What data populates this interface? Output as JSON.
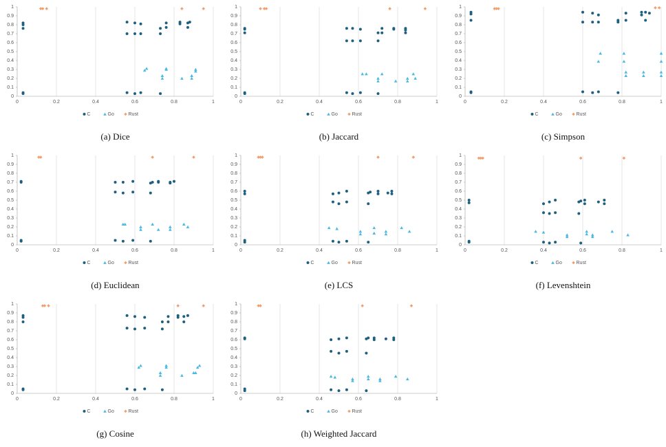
{
  "chart_data": [
    {
      "type": "scatter",
      "title": "(a) Dice",
      "xlim": [
        0,
        1
      ],
      "ylim": [
        0,
        1
      ],
      "xticks": [
        0,
        0.2,
        0.4,
        0.6,
        0.8,
        1
      ],
      "yticks": [
        0,
        0.1,
        0.2,
        0.3,
        0.4,
        0.5,
        0.6,
        0.7,
        0.8,
        0.9,
        1
      ],
      "grid": true,
      "series": [
        {
          "name": "C",
          "color": "#1f5f7f",
          "marker": "circle",
          "x": [
            0.03,
            0.03,
            0.03,
            0.03,
            0.03,
            0.56,
            0.56,
            0.6,
            0.6,
            0.63,
            0.63,
            0.73,
            0.73,
            0.76,
            0.76,
            0.83,
            0.83,
            0.87,
            0.87,
            0.88,
            0.56,
            0.6,
            0.63,
            0.73
          ],
          "y": [
            0.82,
            0.8,
            0.76,
            0.04,
            0.03,
            0.83,
            0.7,
            0.82,
            0.7,
            0.81,
            0.7,
            0.76,
            0.7,
            0.82,
            0.77,
            0.83,
            0.81,
            0.82,
            0.77,
            0.83,
            0.04,
            0.03,
            0.04,
            0.03
          ]
        },
        {
          "name": "Go",
          "color": "#4cb8e0",
          "marker": "triangle",
          "x": [
            0.65,
            0.66,
            0.74,
            0.74,
            0.76,
            0.76,
            0.84,
            0.89,
            0.89,
            0.91,
            0.91
          ],
          "y": [
            0.29,
            0.31,
            0.2,
            0.23,
            0.3,
            0.31,
            0.2,
            0.2,
            0.23,
            0.3,
            0.28
          ]
        },
        {
          "name": "Rust",
          "color": "#f0a070",
          "marker": "diamond",
          "x": [
            0.12,
            0.13,
            0.15,
            0.84,
            0.95
          ],
          "y": [
            0.98,
            0.98,
            0.98,
            0.98,
            0.98
          ]
        }
      ]
    },
    {
      "type": "scatter",
      "title": "(b) Jaccard",
      "xlim": [
        0,
        1
      ],
      "ylim": [
        0,
        1
      ],
      "xticks": [
        0,
        0.2,
        0.4,
        0.6,
        0.8,
        1
      ],
      "yticks": [
        0,
        0.1,
        0.2,
        0.3,
        0.4,
        0.5,
        0.6,
        0.7,
        0.8,
        0.9,
        1
      ],
      "grid": true,
      "series": [
        {
          "name": "C",
          "color": "#1f5f7f",
          "marker": "circle",
          "x": [
            0.02,
            0.02,
            0.02,
            0.02,
            0.02,
            0.54,
            0.54,
            0.57,
            0.57,
            0.61,
            0.61,
            0.7,
            0.7,
            0.72,
            0.72,
            0.78,
            0.78,
            0.84,
            0.84,
            0.84,
            0.54,
            0.57,
            0.61,
            0.7
          ],
          "y": [
            0.76,
            0.75,
            0.71,
            0.04,
            0.03,
            0.76,
            0.62,
            0.76,
            0.62,
            0.75,
            0.62,
            0.71,
            0.62,
            0.76,
            0.71,
            0.76,
            0.75,
            0.76,
            0.74,
            0.71,
            0.04,
            0.03,
            0.04,
            0.03
          ]
        },
        {
          "name": "Go",
          "color": "#4cb8e0",
          "marker": "triangle",
          "x": [
            0.62,
            0.64,
            0.7,
            0.7,
            0.72,
            0.79,
            0.85,
            0.85,
            0.88,
            0.89
          ],
          "y": [
            0.25,
            0.25,
            0.17,
            0.2,
            0.25,
            0.17,
            0.17,
            0.2,
            0.25,
            0.2
          ]
        },
        {
          "name": "Rust",
          "color": "#f0a070",
          "marker": "diamond",
          "x": [
            0.1,
            0.12,
            0.13,
            0.76,
            0.94
          ],
          "y": [
            0.98,
            0.98,
            0.98,
            0.98,
            0.98
          ]
        }
      ]
    },
    {
      "type": "scatter",
      "title": "(c) Simpson",
      "xlim": [
        0,
        1
      ],
      "ylim": [
        0,
        1
      ],
      "xticks": [
        0,
        0.2,
        0.4,
        0.6,
        0.8,
        1
      ],
      "yticks": [
        0,
        0.1,
        0.2,
        0.3,
        0.4,
        0.5,
        0.6,
        0.7,
        0.8,
        0.9,
        1
      ],
      "grid": true,
      "series": [
        {
          "name": "C",
          "color": "#1f5f7f",
          "marker": "circle",
          "x": [
            0.03,
            0.03,
            0.03,
            0.03,
            0.03,
            0.6,
            0.6,
            0.65,
            0.65,
            0.68,
            0.68,
            0.78,
            0.78,
            0.82,
            0.82,
            0.9,
            0.9,
            0.92,
            0.92,
            0.94,
            0.6,
            0.65,
            0.68,
            0.78
          ],
          "y": [
            0.94,
            0.92,
            0.85,
            0.05,
            0.04,
            0.94,
            0.83,
            0.93,
            0.83,
            0.91,
            0.83,
            0.85,
            0.83,
            0.93,
            0.85,
            0.94,
            0.91,
            0.94,
            0.85,
            0.93,
            0.05,
            0.04,
            0.05,
            0.04
          ]
        },
        {
          "name": "Go",
          "color": "#4cb8e0",
          "marker": "triangle",
          "x": [
            0.68,
            0.69,
            0.81,
            0.81,
            0.82,
            0.82,
            0.91,
            0.91,
            1,
            1,
            1,
            1
          ],
          "y": [
            0.39,
            0.48,
            0.48,
            0.39,
            0.27,
            0.23,
            0.27,
            0.23,
            0.48,
            0.39,
            0.27,
            0.23
          ]
        },
        {
          "name": "Rust",
          "color": "#f0a070",
          "marker": "diamond",
          "x": [
            0.15,
            0.16,
            0.17,
            0.97,
            0.99
          ],
          "y": [
            0.98,
            0.98,
            0.98,
            0.99,
            0.99
          ]
        }
      ]
    },
    {
      "type": "scatter",
      "title": "(d) Euclidean",
      "xlim": [
        0,
        1
      ],
      "ylim": [
        0,
        1
      ],
      "xticks": [
        0,
        0.2,
        0.4,
        0.6,
        0.8,
        1
      ],
      "yticks": [
        0,
        0.1,
        0.2,
        0.3,
        0.4,
        0.5,
        0.6,
        0.7,
        0.8,
        0.9,
        1
      ],
      "grid": true,
      "series": [
        {
          "name": "C",
          "color": "#1f5f7f",
          "marker": "circle",
          "x": [
            0.02,
            0.02,
            0.02,
            0.02,
            0.5,
            0.5,
            0.54,
            0.54,
            0.59,
            0.59,
            0.68,
            0.68,
            0.69,
            0.72,
            0.72,
            0.78,
            0.78,
            0.8,
            0.5,
            0.54,
            0.59,
            0.68
          ],
          "y": [
            0.71,
            0.7,
            0.05,
            0.04,
            0.7,
            0.59,
            0.7,
            0.58,
            0.71,
            0.59,
            0.69,
            0.58,
            0.7,
            0.71,
            0.7,
            0.7,
            0.69,
            0.71,
            0.05,
            0.04,
            0.05,
            0.04
          ]
        },
        {
          "name": "Go",
          "color": "#4cb8e0",
          "marker": "triangle",
          "x": [
            0.54,
            0.55,
            0.63,
            0.63,
            0.69,
            0.72,
            0.78,
            0.78,
            0.85,
            0.87
          ],
          "y": [
            0.23,
            0.23,
            0.2,
            0.17,
            0.23,
            0.17,
            0.2,
            0.17,
            0.23,
            0.2
          ]
        },
        {
          "name": "Rust",
          "color": "#f0a070",
          "marker": "diamond",
          "x": [
            0.11,
            0.12,
            0.69,
            0.9
          ],
          "y": [
            0.98,
            0.98,
            0.98,
            0.98
          ]
        }
      ]
    },
    {
      "type": "scatter",
      "title": "(e) LCS",
      "xlim": [
        0,
        1
      ],
      "ylim": [
        0,
        1
      ],
      "xticks": [
        0,
        0.2,
        0.4,
        0.6,
        0.8,
        1
      ],
      "yticks": [
        0,
        0.1,
        0.2,
        0.3,
        0.4,
        0.5,
        0.6,
        0.7,
        0.8,
        0.9,
        1
      ],
      "grid": true,
      "series": [
        {
          "name": "C",
          "color": "#1f5f7f",
          "marker": "circle",
          "x": [
            0.02,
            0.02,
            0.02,
            0.02,
            0.47,
            0.47,
            0.5,
            0.5,
            0.54,
            0.54,
            0.65,
            0.65,
            0.66,
            0.7,
            0.7,
            0.75,
            0.77,
            0.77,
            0.47,
            0.5,
            0.54,
            0.65
          ],
          "y": [
            0.6,
            0.57,
            0.05,
            0.03,
            0.57,
            0.48,
            0.58,
            0.46,
            0.6,
            0.48,
            0.58,
            0.46,
            0.59,
            0.6,
            0.57,
            0.58,
            0.6,
            0.57,
            0.04,
            0.03,
            0.04,
            0.03
          ]
        },
        {
          "name": "Go",
          "color": "#4cb8e0",
          "marker": "triangle",
          "x": [
            0.45,
            0.49,
            0.61,
            0.61,
            0.68,
            0.68,
            0.74,
            0.74,
            0.82,
            0.86
          ],
          "y": [
            0.19,
            0.18,
            0.15,
            0.12,
            0.19,
            0.13,
            0.15,
            0.12,
            0.19,
            0.15
          ]
        },
        {
          "name": "Rust",
          "color": "#f0a070",
          "marker": "diamond",
          "x": [
            0.09,
            0.1,
            0.11,
            0.7,
            0.88
          ],
          "y": [
            0.98,
            0.98,
            0.98,
            0.98,
            0.98
          ]
        }
      ]
    },
    {
      "type": "scatter",
      "title": "(f) Levenshtein",
      "xlim": [
        0,
        1
      ],
      "ylim": [
        0,
        1
      ],
      "xticks": [
        0,
        0.2,
        0.4,
        0.6,
        0.8,
        1
      ],
      "yticks": [
        0,
        0.1,
        0.2,
        0.3,
        0.4,
        0.5,
        0.6,
        0.7,
        0.8,
        0.9,
        1
      ],
      "grid": true,
      "series": [
        {
          "name": "C",
          "color": "#1f5f7f",
          "marker": "circle",
          "x": [
            0.02,
            0.02,
            0.02,
            0.02,
            0.4,
            0.4,
            0.43,
            0.43,
            0.46,
            0.46,
            0.58,
            0.58,
            0.59,
            0.61,
            0.61,
            0.68,
            0.71,
            0.71,
            0.4,
            0.43,
            0.46,
            0.59
          ],
          "y": [
            0.5,
            0.47,
            0.04,
            0.03,
            0.46,
            0.36,
            0.48,
            0.35,
            0.5,
            0.36,
            0.48,
            0.35,
            0.49,
            0.5,
            0.46,
            0.48,
            0.5,
            0.46,
            0.03,
            0.02,
            0.03,
            0.02
          ]
        },
        {
          "name": "Go",
          "color": "#4cb8e0",
          "marker": "triangle",
          "x": [
            0.36,
            0.4,
            0.52,
            0.52,
            0.62,
            0.62,
            0.65,
            0.65,
            0.75,
            0.83
          ],
          "y": [
            0.15,
            0.14,
            0.11,
            0.09,
            0.15,
            0.12,
            0.11,
            0.09,
            0.15,
            0.11
          ]
        },
        {
          "name": "Rust",
          "color": "#f0a070",
          "marker": "diamond",
          "x": [
            0.07,
            0.08,
            0.09,
            0.59,
            0.81
          ],
          "y": [
            0.97,
            0.97,
            0.97,
            0.97,
            0.97
          ]
        }
      ]
    },
    {
      "type": "scatter",
      "title": "(g) Cosine",
      "xlim": [
        0,
        1
      ],
      "ylim": [
        0,
        1
      ],
      "xticks": [
        0,
        0.2,
        0.4,
        0.6,
        0.8,
        1
      ],
      "yticks": [
        0,
        0.1,
        0.2,
        0.3,
        0.4,
        0.5,
        0.6,
        0.7,
        0.8,
        0.9,
        1
      ],
      "grid": true,
      "series": [
        {
          "name": "C",
          "color": "#1f5f7f",
          "marker": "circle",
          "x": [
            0.03,
            0.03,
            0.03,
            0.03,
            0.03,
            0.56,
            0.56,
            0.6,
            0.6,
            0.65,
            0.65,
            0.74,
            0.74,
            0.77,
            0.77,
            0.82,
            0.82,
            0.85,
            0.85,
            0.87,
            0.56,
            0.6,
            0.65,
            0.74
          ],
          "y": [
            0.87,
            0.85,
            0.8,
            0.05,
            0.04,
            0.87,
            0.73,
            0.86,
            0.72,
            0.85,
            0.73,
            0.8,
            0.72,
            0.86,
            0.8,
            0.87,
            0.85,
            0.86,
            0.8,
            0.87,
            0.05,
            0.04,
            0.05,
            0.04
          ]
        },
        {
          "name": "Go",
          "color": "#4cb8e0",
          "marker": "triangle",
          "x": [
            0.62,
            0.63,
            0.73,
            0.73,
            0.76,
            0.76,
            0.84,
            0.9,
            0.91,
            0.92,
            0.93
          ],
          "y": [
            0.29,
            0.31,
            0.2,
            0.23,
            0.29,
            0.31,
            0.2,
            0.23,
            0.23,
            0.29,
            0.31
          ]
        },
        {
          "name": "Rust",
          "color": "#f0a070",
          "marker": "diamond",
          "x": [
            0.13,
            0.14,
            0.16,
            0.82,
            0.95
          ],
          "y": [
            0.98,
            0.98,
            0.98,
            0.98,
            0.98
          ]
        }
      ]
    },
    {
      "type": "scatter",
      "title": "(h) Weighted Jaccard",
      "xlim": [
        0,
        1
      ],
      "ylim": [
        0,
        1
      ],
      "xticks": [
        0,
        0.2,
        0.4,
        0.6,
        0.8,
        1
      ],
      "yticks": [
        0,
        0.1,
        0.2,
        0.3,
        0.4,
        0.5,
        0.6,
        0.7,
        0.8,
        0.9,
        1
      ],
      "grid": true,
      "series": [
        {
          "name": "C",
          "color": "#1f5f7f",
          "marker": "circle",
          "x": [
            0.02,
            0.02,
            0.02,
            0.02,
            0.46,
            0.46,
            0.5,
            0.5,
            0.54,
            0.54,
            0.64,
            0.64,
            0.65,
            0.68,
            0.68,
            0.74,
            0.78,
            0.78,
            0.46,
            0.5,
            0.54,
            0.64
          ],
          "y": [
            0.62,
            0.61,
            0.05,
            0.03,
            0.6,
            0.47,
            0.61,
            0.45,
            0.62,
            0.47,
            0.61,
            0.45,
            0.62,
            0.62,
            0.6,
            0.61,
            0.62,
            0.6,
            0.04,
            0.03,
            0.04,
            0.03
          ]
        },
        {
          "name": "Go",
          "color": "#4cb8e0",
          "marker": "triangle",
          "x": [
            0.46,
            0.48,
            0.57,
            0.57,
            0.65,
            0.65,
            0.71,
            0.71,
            0.79,
            0.85
          ],
          "y": [
            0.19,
            0.18,
            0.16,
            0.14,
            0.19,
            0.16,
            0.16,
            0.14,
            0.19,
            0.16
          ]
        },
        {
          "name": "Rust",
          "color": "#f0a070",
          "marker": "diamond",
          "x": [
            0.09,
            0.1,
            0.62,
            0.87
          ],
          "y": [
            0.98,
            0.98,
            0.98,
            0.98
          ]
        }
      ]
    }
  ]
}
